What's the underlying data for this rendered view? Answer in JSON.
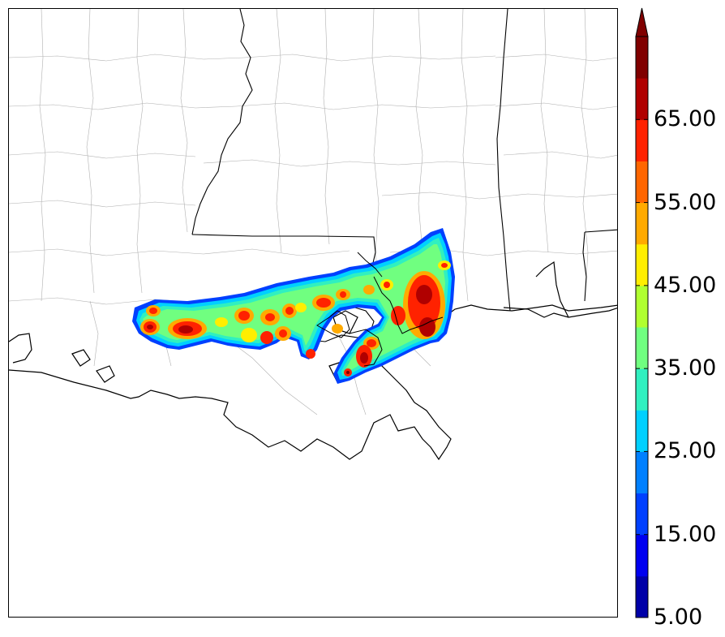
{
  "colorbar": {
    "colors": [
      "#0000a8",
      "#0000f0",
      "#0040ff",
      "#0080ff",
      "#00d0ff",
      "#30f0c0",
      "#70ff80",
      "#b0ff30",
      "#ffee00",
      "#ffaa00",
      "#ff6600",
      "#ff2200",
      "#b00000",
      "#800000"
    ],
    "tick_labels": [
      {
        "value": 5,
        "label": "5.00"
      },
      {
        "value": 15,
        "label": "15.00"
      },
      {
        "value": 25,
        "label": "25.00"
      },
      {
        "value": 35,
        "label": "35.00"
      },
      {
        "value": 45,
        "label": "45.00"
      },
      {
        "value": 55,
        "label": "55.00"
      },
      {
        "value": 65,
        "label": "65.00"
      }
    ],
    "min": 5,
    "max": 75,
    "extend": "max"
  },
  "map": {
    "region": "Louisiana, Mississippi, Alabama coast",
    "field": "reflectivity swath"
  }
}
